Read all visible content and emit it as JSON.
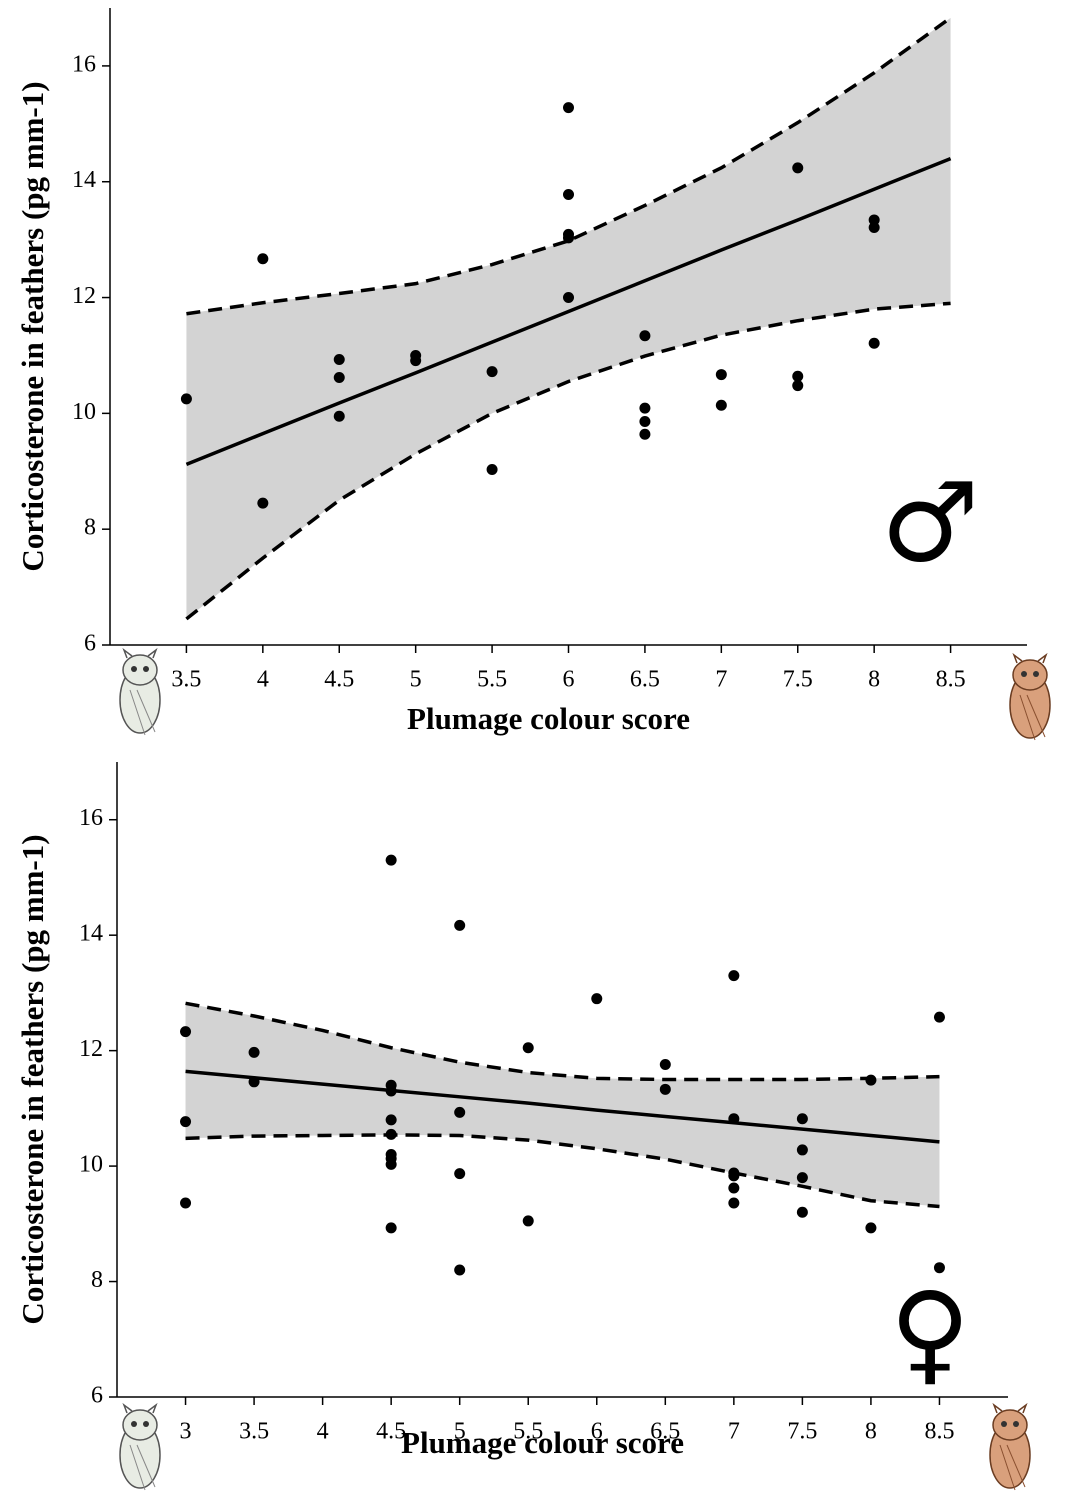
{
  "chart_data": [
    {
      "type": "scatter",
      "x_label": "Plumage colour score",
      "y_label": "Corticosterone in feathers (pg mm-1)",
      "annotation": "♂",
      "xlim": [
        3,
        9
      ],
      "xticks": [
        3.5,
        4,
        4.5,
        5,
        5.5,
        6,
        6.5,
        7,
        7.5,
        8,
        8.5
      ],
      "ylim": [
        6,
        17
      ],
      "yticks": [
        6,
        8,
        10,
        12,
        14,
        16
      ],
      "series": [
        {
          "color": "#000000",
          "x": [
            3.5,
            4,
            4,
            4.5,
            4.5,
            4.5,
            5,
            5,
            5.5,
            5.5,
            6,
            6,
            6,
            6,
            6,
            6.5,
            6.5,
            6.5,
            6.5,
            7,
            7,
            7.5,
            7.5,
            7.5,
            8,
            8,
            8
          ],
          "values": [
            10.25,
            12.67,
            8.45,
            10.93,
            10.62,
            9.95,
            11.0,
            10.91,
            10.72,
            9.03,
            15.28,
            13.78,
            13.09,
            13.03,
            12.0,
            11.34,
            10.09,
            9.86,
            9.64,
            10.67,
            10.14,
            14.24,
            10.64,
            10.48,
            13.34,
            13.21,
            11.21
          ]
        }
      ],
      "fit": {
        "color": "#000000",
        "band_color": "#d3d3d3",
        "x": [
          3.5,
          4,
          4.5,
          5,
          5.5,
          6,
          6.5,
          7,
          7.5,
          8,
          8.5
        ],
        "values": [
          9.12,
          9.65,
          10.18,
          10.7,
          11.23,
          11.76,
          12.29,
          12.82,
          13.34,
          13.87,
          14.4
        ],
        "upper": [
          11.72,
          11.91,
          12.07,
          12.24,
          12.57,
          12.98,
          13.59,
          14.24,
          15.02,
          15.88,
          16.83
        ],
        "lower": [
          6.45,
          7.5,
          8.5,
          9.3,
          10.0,
          10.55,
          10.99,
          11.35,
          11.6,
          11.8,
          11.9
        ]
      }
    },
    {
      "type": "scatter",
      "x_label": "Plumage colour score",
      "y_label": "Corticosterone in feathers (pg mm-1)",
      "annotation": "♀",
      "xlim": [
        2.5,
        9
      ],
      "xticks": [
        3,
        3.5,
        4,
        4.5,
        5,
        5.5,
        6,
        6.5,
        7,
        7.5,
        8,
        8.5
      ],
      "ylim": [
        6,
        17
      ],
      "yticks": [
        6,
        8,
        10,
        12,
        14,
        16
      ],
      "series": [
        {
          "color": "#000000",
          "x": [
            3,
            3,
            3,
            3.5,
            3.5,
            4.5,
            4.5,
            4.5,
            4.5,
            4.5,
            4.5,
            4.5,
            4.5,
            4.5,
            5,
            5,
            5,
            5,
            5.5,
            5.5,
            6,
            6.5,
            6.5,
            7,
            7,
            7,
            7,
            7,
            7,
            7.5,
            7.5,
            7.5,
            7.5,
            8,
            8,
            8.5,
            8.5
          ],
          "values": [
            12.33,
            10.77,
            9.36,
            11.97,
            11.46,
            15.3,
            11.4,
            11.3,
            10.8,
            10.55,
            10.2,
            10.13,
            10.03,
            8.93,
            14.17,
            10.93,
            9.87,
            8.2,
            12.05,
            9.05,
            12.9,
            11.76,
            11.33,
            13.3,
            10.82,
            9.88,
            9.83,
            9.62,
            9.36,
            10.82,
            10.28,
            9.8,
            9.2,
            11.49,
            8.93,
            12.58,
            8.24
          ]
        }
      ],
      "fit": {
        "color": "#000000",
        "band_color": "#d3d3d3",
        "x": [
          3,
          3.5,
          4,
          4.5,
          5,
          5.5,
          6,
          6.5,
          7,
          7.5,
          8,
          8.5
        ],
        "values": [
          11.64,
          11.53,
          11.42,
          11.31,
          11.2,
          11.09,
          10.97,
          10.86,
          10.75,
          10.64,
          10.53,
          10.42
        ],
        "upper": [
          12.82,
          12.6,
          12.35,
          12.05,
          11.8,
          11.62,
          11.52,
          11.5,
          11.5,
          11.5,
          11.52,
          11.55
        ],
        "lower": [
          10.48,
          10.52,
          10.53,
          10.54,
          10.53,
          10.45,
          10.3,
          10.12,
          9.88,
          9.65,
          9.4,
          9.3
        ]
      }
    }
  ]
}
